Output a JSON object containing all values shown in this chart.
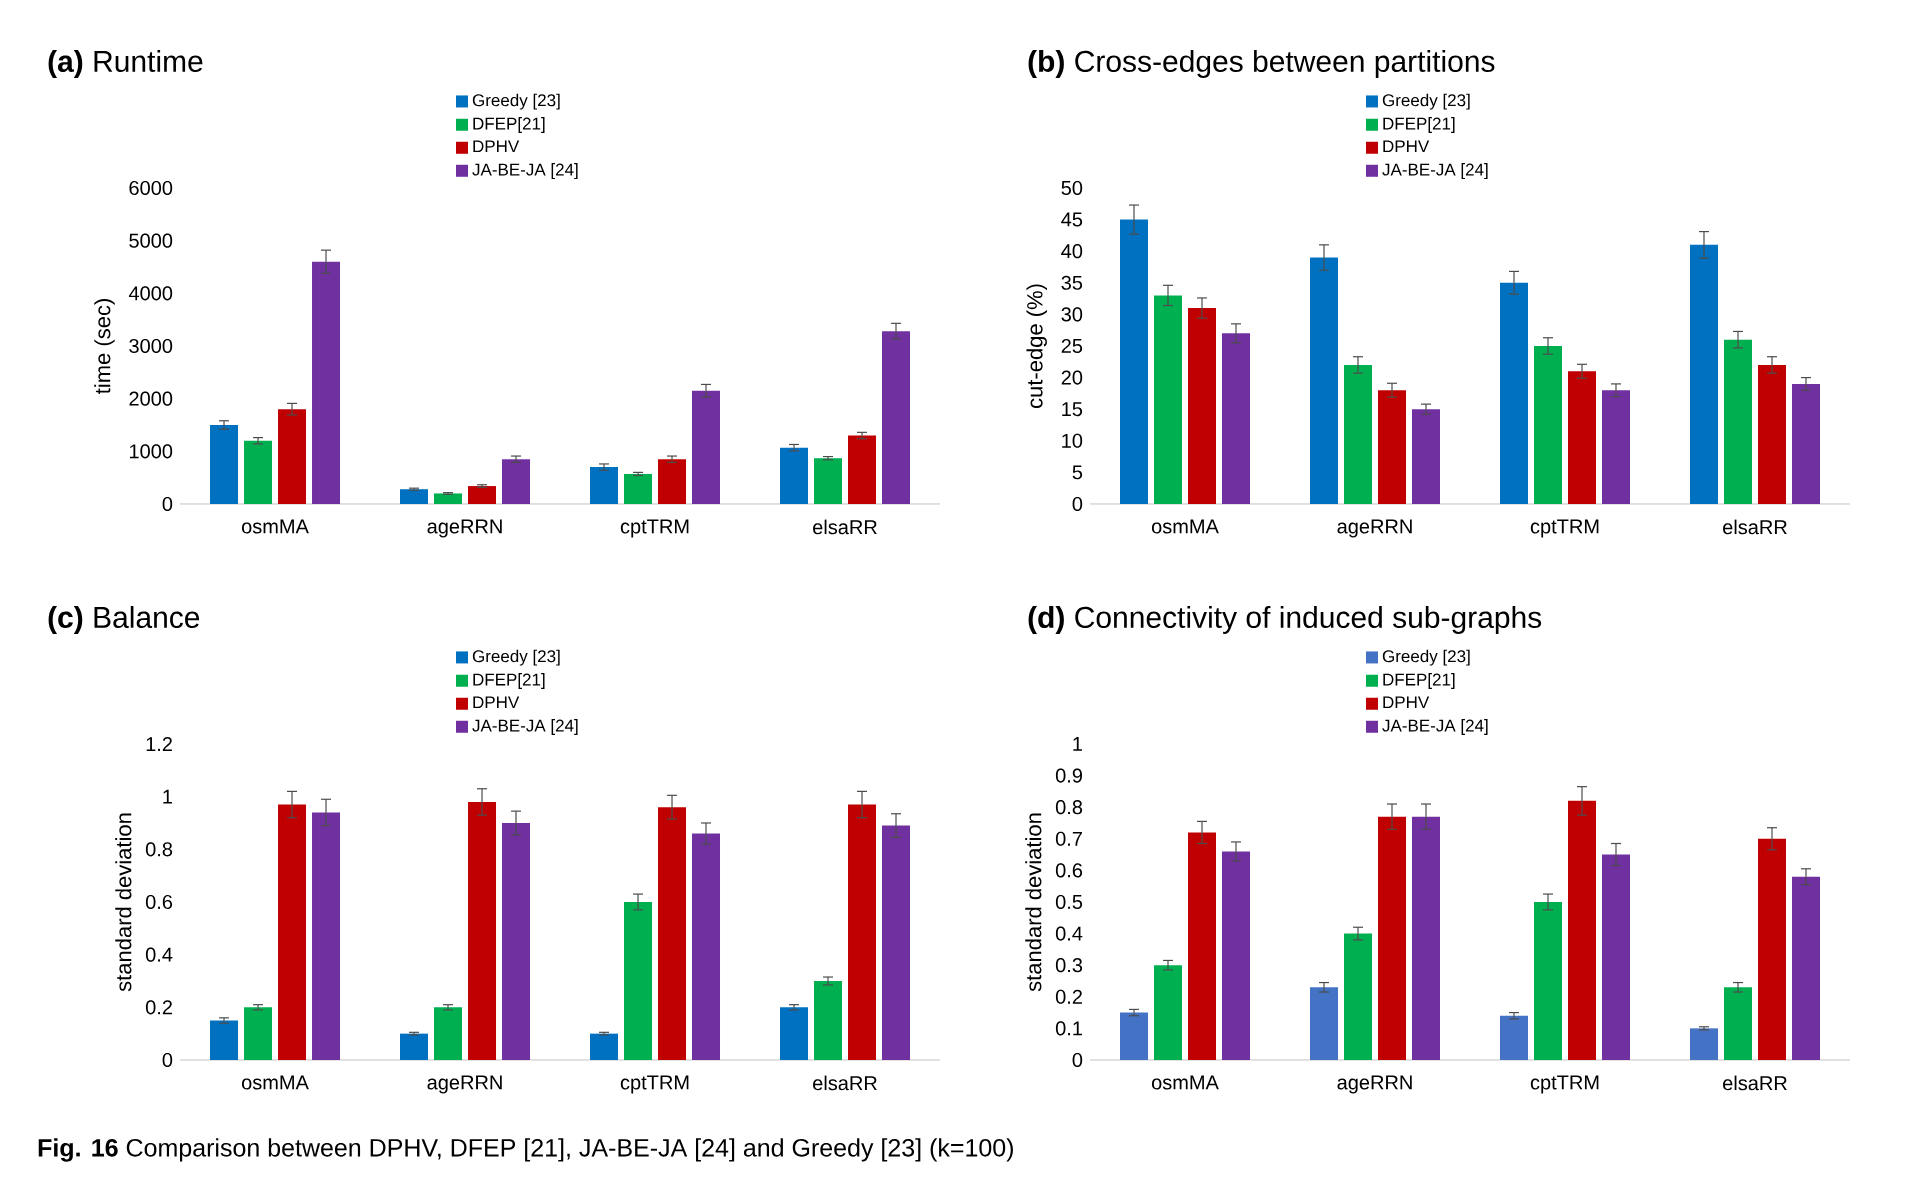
{
  "chart_data": [
    {
      "type": "bar",
      "title": "**(a)** Runtime",
      "ylabel": "time (sec)",
      "categories": [
        "osmMA",
        "ageRRN",
        "cptTRM",
        "elsaRR"
      ],
      "ylim": [
        0,
        6000
      ],
      "yticks": [
        0,
        1000,
        2000,
        3000,
        4000,
        5000,
        6000
      ],
      "legend": "top",
      "series": [
        {
          "name": "Greedy [23]",
          "color": "#0070c0",
          "values": [
            1500,
            280,
            700,
            1070
          ],
          "errors": [
            80,
            20,
            60,
            60
          ]
        },
        {
          "name": "DFEP[21]",
          "color": "#00b050",
          "values": [
            1200,
            200,
            570,
            870
          ],
          "errors": [
            60,
            15,
            30,
            30
          ]
        },
        {
          "name": "DPHV",
          "color": "#c00000",
          "values": [
            1800,
            340,
            850,
            1300
          ],
          "errors": [
            110,
            25,
            60,
            60
          ]
        },
        {
          "name": "JA-BE-JA [24]",
          "color": "#7030a0",
          "values": [
            4600,
            850,
            2150,
            3280
          ],
          "errors": [
            220,
            60,
            120,
            150
          ]
        }
      ]
    },
    {
      "type": "bar",
      "title": "**(b)** Cross-edges between partitions",
      "ylabel": "cut-edge (%)",
      "categories": [
        "osmMA",
        "ageRRN",
        "cptTRM",
        "elsaRR"
      ],
      "ylim": [
        0,
        50
      ],
      "yticks": [
        0,
        5,
        10,
        15,
        20,
        25,
        30,
        35,
        40,
        45,
        50
      ],
      "legend": "top",
      "series": [
        {
          "name": "Greedy [23]",
          "color": "#0070c0",
          "values": [
            45,
            39,
            35,
            41
          ],
          "errors": [
            2.3,
            2,
            1.8,
            2.1
          ]
        },
        {
          "name": "DFEP[21]",
          "color": "#00b050",
          "values": [
            33,
            22,
            25,
            26
          ],
          "errors": [
            1.6,
            1.3,
            1.3,
            1.3
          ]
        },
        {
          "name": "DPHV",
          "color": "#c00000",
          "values": [
            31,
            18,
            21,
            22
          ],
          "errors": [
            1.6,
            1.1,
            1.1,
            1.3
          ]
        },
        {
          "name": "JA-BE-JA [24]",
          "color": "#7030a0",
          "values": [
            27,
            15,
            18,
            19
          ],
          "errors": [
            1.5,
            0.8,
            1,
            1
          ]
        }
      ]
    },
    {
      "type": "bar",
      "title": "**(c)** Balance",
      "ylabel": "standard deviation",
      "categories": [
        "osmMA",
        "ageRRN",
        "cptTRM",
        "elsaRR"
      ],
      "ylim": [
        0,
        1.2
      ],
      "yticks": [
        0,
        0.2,
        0.4,
        0.6,
        0.8,
        1,
        1.2
      ],
      "legend": "top",
      "series": [
        {
          "name": "Greedy [23]",
          "color": "#0070c0",
          "values": [
            0.15,
            0.1,
            0.1,
            0.2
          ],
          "errors": [
            0.01,
            0.005,
            0.005,
            0.01
          ]
        },
        {
          "name": "DFEP[21]",
          "color": "#00b050",
          "values": [
            0.2,
            0.2,
            0.6,
            0.3
          ],
          "errors": [
            0.01,
            0.01,
            0.03,
            0.015
          ]
        },
        {
          "name": "DPHV",
          "color": "#c00000",
          "values": [
            0.97,
            0.98,
            0.96,
            0.97
          ],
          "errors": [
            0.05,
            0.05,
            0.045,
            0.05
          ]
        },
        {
          "name": "JA-BE-JA [24]",
          "color": "#7030a0",
          "values": [
            0.94,
            0.9,
            0.86,
            0.89
          ],
          "errors": [
            0.05,
            0.045,
            0.04,
            0.045
          ]
        }
      ]
    },
    {
      "type": "bar",
      "title": "**(d)** Connectivity of induced sub-graphs",
      "ylabel": "standard deviation",
      "categories": [
        "osmMA",
        "ageRRN",
        "cptTRM",
        "elsaRR"
      ],
      "ylim": [
        0,
        1
      ],
      "yticks": [
        0,
        0.1,
        0.2,
        0.3,
        0.4,
        0.5,
        0.6,
        0.7,
        0.8,
        0.9,
        1
      ],
      "legend": "top",
      "annotations": [
        "**Fig. 16** Comparison between DPHV, DFEP [21], JA-BE-JA [24] and Greedy [23] (k=100)"
      ],
      "series": [
        {
          "name": "Greedy [23]",
          "color": "#4472c4",
          "values": [
            0.15,
            0.23,
            0.14,
            0.1
          ],
          "errors": [
            0.01,
            0.015,
            0.01,
            0.005
          ]
        },
        {
          "name": "DFEP[21]",
          "color": "#00b050",
          "values": [
            0.3,
            0.4,
            0.5,
            0.23
          ],
          "errors": [
            0.015,
            0.02,
            0.025,
            0.015
          ]
        },
        {
          "name": "DPHV",
          "color": "#c00000",
          "values": [
            0.72,
            0.77,
            0.82,
            0.7
          ],
          "errors": [
            0.035,
            0.04,
            0.045,
            0.035
          ]
        },
        {
          "name": "JA-BE-JA [24]",
          "color": "#7030a0",
          "values": [
            0.66,
            0.77,
            0.65,
            0.58
          ],
          "errors": [
            0.03,
            0.04,
            0.035,
            0.025
          ]
        }
      ]
    }
  ]
}
